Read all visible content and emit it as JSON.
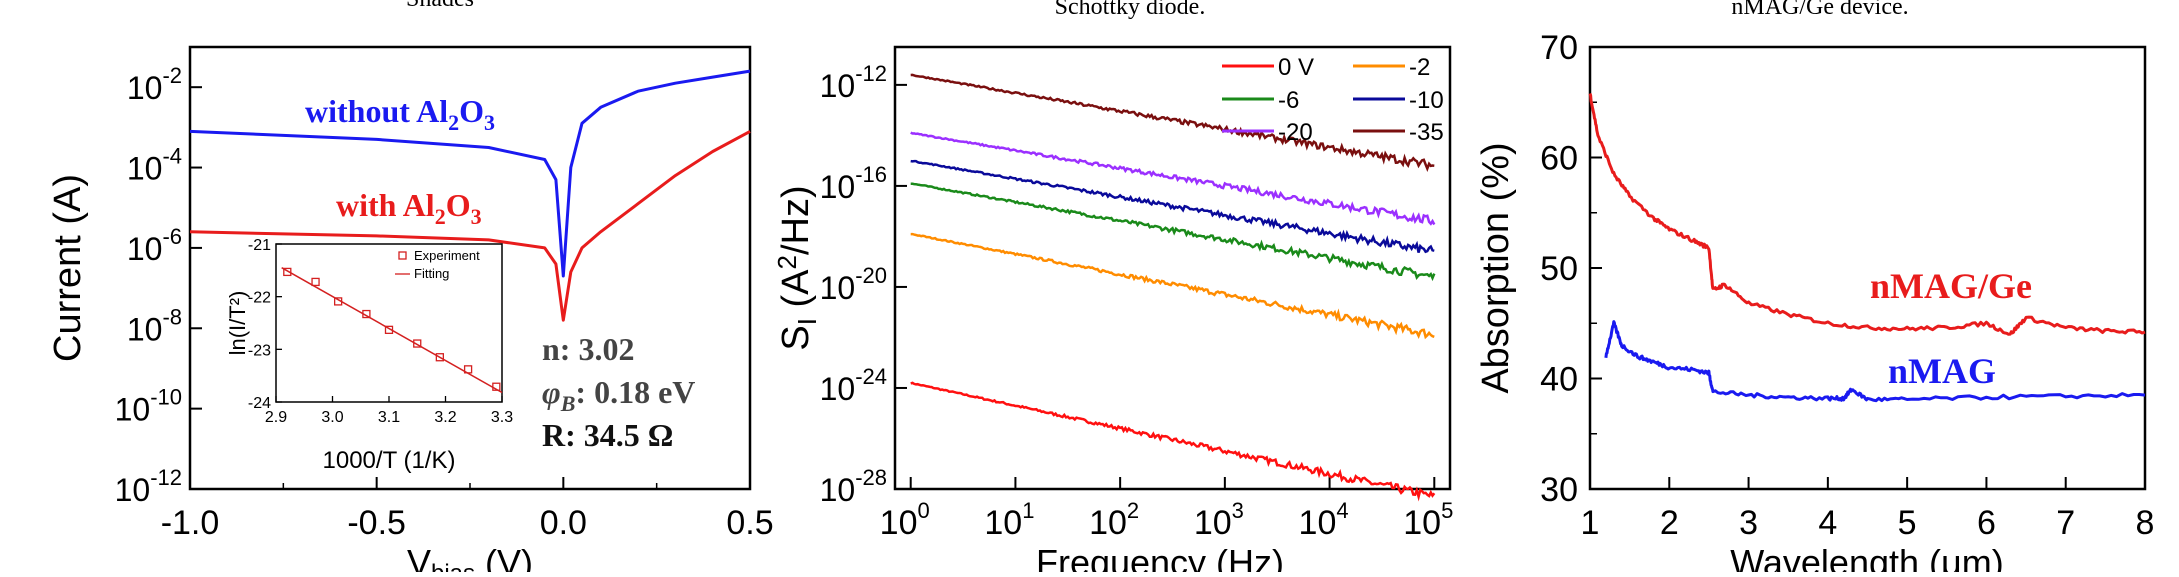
{
  "top_fragments": {
    "left": "Shades",
    "middle": "Schottky diode.",
    "right": "nMAG/Ge device."
  },
  "chart_data": [
    {
      "type": "line",
      "xlabel": "V",
      "xlabel_sub": "bias",
      "xlabel_unit": " (V)",
      "ylabel": "Current (A)",
      "y_scale": "log",
      "xlim": [
        -1.0,
        0.5
      ],
      "ylim_exp": [
        -12,
        -1
      ],
      "x_ticks": [
        "-1.0",
        "-0.5",
        "0.0",
        "0.5"
      ],
      "y_ticks": [
        "-12",
        "-10",
        "-8",
        "-6",
        "-4",
        "-2"
      ],
      "series": [
        {
          "name": "without Al2O3",
          "label_main": "without Al",
          "label_sub": "2",
          "label_mid": "O",
          "label_sub2": "3",
          "color": "#1a1af0",
          "x": [
            -1.0,
            -0.5,
            -0.2,
            -0.05,
            -0.02,
            0.0,
            0.02,
            0.05,
            0.1,
            0.2,
            0.3,
            0.4,
            0.5
          ],
          "y_exp": [
            -3.1,
            -3.3,
            -3.5,
            -3.8,
            -4.3,
            -6.7,
            -4.0,
            -2.9,
            -2.5,
            -2.1,
            -1.9,
            -1.75,
            -1.6
          ]
        },
        {
          "name": "with Al2O3",
          "label_main": "with Al",
          "label_sub": "2",
          "label_mid": "O",
          "label_sub2": "3",
          "color": "#e81c1c",
          "x": [
            -1.0,
            -0.5,
            -0.2,
            -0.05,
            -0.02,
            0.0,
            0.02,
            0.05,
            0.1,
            0.2,
            0.3,
            0.4,
            0.5
          ],
          "y_exp": [
            -5.6,
            -5.7,
            -5.8,
            -6.0,
            -6.4,
            -7.8,
            -6.6,
            -6.0,
            -5.6,
            -4.9,
            -4.2,
            -3.6,
            -3.1
          ]
        }
      ],
      "annotations": [
        "n: 3.02",
        ": 0.18 eV",
        "R: 34.5 Ω"
      ],
      "phi_symbol": "φ",
      "phi_sub": "B",
      "inset": {
        "xlabel": "1000/T (1/K)",
        "ylabel": "ln(I/T²)",
        "xlim": [
          2.9,
          3.3
        ],
        "ylim": [
          -24,
          -21
        ],
        "x_ticks": [
          "2.9",
          "3.0",
          "3.1",
          "3.2",
          "3.3"
        ],
        "y_ticks": [
          "-21",
          "-22",
          "-23",
          "-24"
        ],
        "legend": [
          "Experiment",
          "Fitting"
        ],
        "experiment": {
          "x": [
            2.92,
            2.97,
            3.01,
            3.06,
            3.1,
            3.15,
            3.19,
            3.24,
            3.29
          ],
          "y": [
            -21.53,
            -21.72,
            -22.09,
            -22.33,
            -22.63,
            -22.89,
            -23.15,
            -23.38,
            -23.71
          ]
        },
        "fit": {
          "x": [
            2.91,
            3.3
          ],
          "y": [
            -21.45,
            -23.82
          ]
        },
        "color": "#d42020"
      }
    },
    {
      "type": "line",
      "xlabel": "Frequency (Hz)",
      "ylabel": "S",
      "ylabel_sub": "I",
      "ylabel_unit_a": " (A",
      "ylabel_sup": "2",
      "ylabel_unit_b": "/Hz)",
      "x_scale": "log",
      "y_scale": "log",
      "xlim_exp": [
        -0.15,
        5.15
      ],
      "ylim_exp": [
        -28,
        -10.5
      ],
      "x_ticks": [
        "0",
        "1",
        "2",
        "3",
        "4",
        "5"
      ],
      "y_ticks": [
        "-28",
        "-24",
        "-20",
        "-16",
        "-12"
      ],
      "series": [
        {
          "name": "0 V",
          "color": "#ff1010",
          "y_at_1Hz_exp": -23.8,
          "slope": -0.9
        },
        {
          "name": "-2",
          "color": "#ff8c00",
          "y_at_1Hz_exp": -17.9,
          "slope": -0.8
        },
        {
          "name": "-6",
          "color": "#1a8a1a",
          "y_at_1Hz_exp": -15.9,
          "slope": -0.74
        },
        {
          "name": "-10",
          "color": "#0a0a9a",
          "y_at_1Hz_exp": -15.0,
          "slope": -0.72
        },
        {
          "name": "-20",
          "color": "#9b30ff",
          "y_at_1Hz_exp": -13.9,
          "slope": -0.7
        },
        {
          "name": "-35",
          "color": "#7a0f0f",
          "y_at_1Hz_exp": -11.6,
          "slope": -0.72
        }
      ]
    },
    {
      "type": "line",
      "xlabel": "Wavelength (μm)",
      "ylabel": "Absorption (%)",
      "xlim": [
        1,
        8
      ],
      "ylim": [
        30,
        70
      ],
      "x_ticks": [
        "1",
        "2",
        "3",
        "4",
        "5",
        "6",
        "7",
        "8"
      ],
      "y_ticks": [
        "30",
        "40",
        "50",
        "60",
        "70"
      ],
      "series": [
        {
          "name": "nMAG/Ge",
          "color": "#e81c1c",
          "x": [
            1.0,
            1.1,
            1.3,
            1.5,
            1.8,
            2.0,
            2.3,
            2.5,
            2.55,
            2.7,
            3.0,
            3.5,
            4.0,
            4.5,
            5.0,
            5.5,
            6.0,
            6.3,
            6.5,
            7.0,
            7.5,
            8.0
          ],
          "y": [
            65.8,
            62.0,
            58.5,
            56.5,
            54.5,
            53.5,
            52.5,
            51.8,
            48.0,
            48.5,
            46.8,
            45.8,
            45.0,
            44.6,
            44.5,
            44.6,
            45.0,
            44.0,
            45.5,
            44.6,
            44.3,
            44.2
          ]
        },
        {
          "name": "nMAG",
          "color": "#1a1af0",
          "x": [
            1.2,
            1.3,
            1.4,
            1.6,
            1.8,
            2.0,
            2.3,
            2.5,
            2.55,
            3.0,
            3.5,
            4.0,
            4.2,
            4.3,
            4.5,
            5.0,
            6.0,
            7.0,
            8.0
          ],
          "y": [
            42.0,
            45.0,
            43.0,
            42.0,
            41.5,
            41.0,
            40.8,
            40.5,
            38.8,
            38.5,
            38.3,
            38.2,
            38.2,
            39.0,
            38.1,
            38.1,
            38.3,
            38.4,
            38.5
          ]
        }
      ]
    }
  ]
}
